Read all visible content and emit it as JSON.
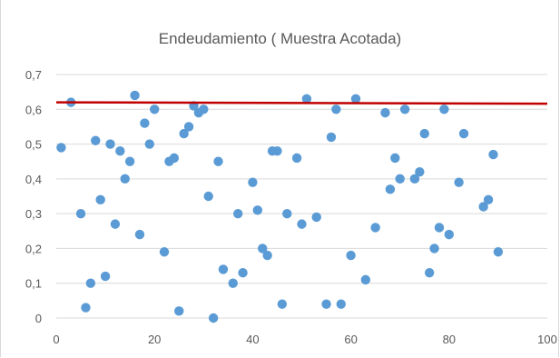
{
  "chart_data": {
    "type": "scatter",
    "title": "Endeudamiento ( Muestra Acotada)",
    "xlabel": "",
    "ylabel": "",
    "xlim": [
      0,
      100
    ],
    "ylim": [
      0,
      0.7
    ],
    "xticks": [
      "0",
      "20",
      "40",
      "60",
      "80",
      "100"
    ],
    "yticks": [
      "0",
      "0,1",
      "0,2",
      "0,3",
      "0,4",
      "0,5",
      "0,6",
      "0,7"
    ],
    "grid": "horizontal",
    "legend": "none",
    "series": [
      {
        "color": "#5b9bd5",
        "points": [
          [
            1,
            0.49
          ],
          [
            3,
            0.62
          ],
          [
            5,
            0.3
          ],
          [
            6,
            0.03
          ],
          [
            7,
            0.1
          ],
          [
            8,
            0.51
          ],
          [
            9,
            0.34
          ],
          [
            10,
            0.12
          ],
          [
            11,
            0.5
          ],
          [
            12,
            0.27
          ],
          [
            13,
            0.48
          ],
          [
            14,
            0.4
          ],
          [
            15,
            0.45
          ],
          [
            16,
            0.64
          ],
          [
            17,
            0.24
          ],
          [
            18,
            0.56
          ],
          [
            19,
            0.5
          ],
          [
            20,
            0.6
          ],
          [
            22,
            0.19
          ],
          [
            23,
            0.45
          ],
          [
            24,
            0.46
          ],
          [
            25,
            0.02
          ],
          [
            26,
            0.53
          ],
          [
            27,
            0.55
          ],
          [
            28,
            0.61
          ],
          [
            29,
            0.59
          ],
          [
            30,
            0.6
          ],
          [
            31,
            0.35
          ],
          [
            32,
            0.0
          ],
          [
            33,
            0.45
          ],
          [
            34,
            0.14
          ],
          [
            36,
            0.1
          ],
          [
            37,
            0.3
          ],
          [
            38,
            0.13
          ],
          [
            40,
            0.39
          ],
          [
            41,
            0.31
          ],
          [
            42,
            0.2
          ],
          [
            43,
            0.18
          ],
          [
            44,
            0.48
          ],
          [
            45,
            0.48
          ],
          [
            46,
            0.04
          ],
          [
            47,
            0.3
          ],
          [
            49,
            0.46
          ],
          [
            50,
            0.27
          ],
          [
            51,
            0.63
          ],
          [
            53,
            0.29
          ],
          [
            55,
            0.04
          ],
          [
            56,
            0.52
          ],
          [
            57,
            0.6
          ],
          [
            58,
            0.04
          ],
          [
            60,
            0.18
          ],
          [
            61,
            0.63
          ],
          [
            63,
            0.11
          ],
          [
            65,
            0.26
          ],
          [
            67,
            0.59
          ],
          [
            68,
            0.37
          ],
          [
            69,
            0.46
          ],
          [
            70,
            0.4
          ],
          [
            71,
            0.6
          ],
          [
            73,
            0.4
          ],
          [
            74,
            0.42
          ],
          [
            75,
            0.53
          ],
          [
            76,
            0.13
          ],
          [
            77,
            0.2
          ],
          [
            78,
            0.26
          ],
          [
            79,
            0.6
          ],
          [
            80,
            0.24
          ],
          [
            82,
            0.39
          ],
          [
            83,
            0.53
          ],
          [
            87,
            0.32
          ],
          [
            88,
            0.34
          ],
          [
            89,
            0.47
          ],
          [
            90,
            0.19
          ]
        ]
      }
    ],
    "reference_line": {
      "y": 0.62,
      "color": "#c00000"
    },
    "colors": {
      "marker": "#5b9bd5",
      "line": "#c00000",
      "grid": "#d9d9d9",
      "text": "#595959"
    }
  }
}
